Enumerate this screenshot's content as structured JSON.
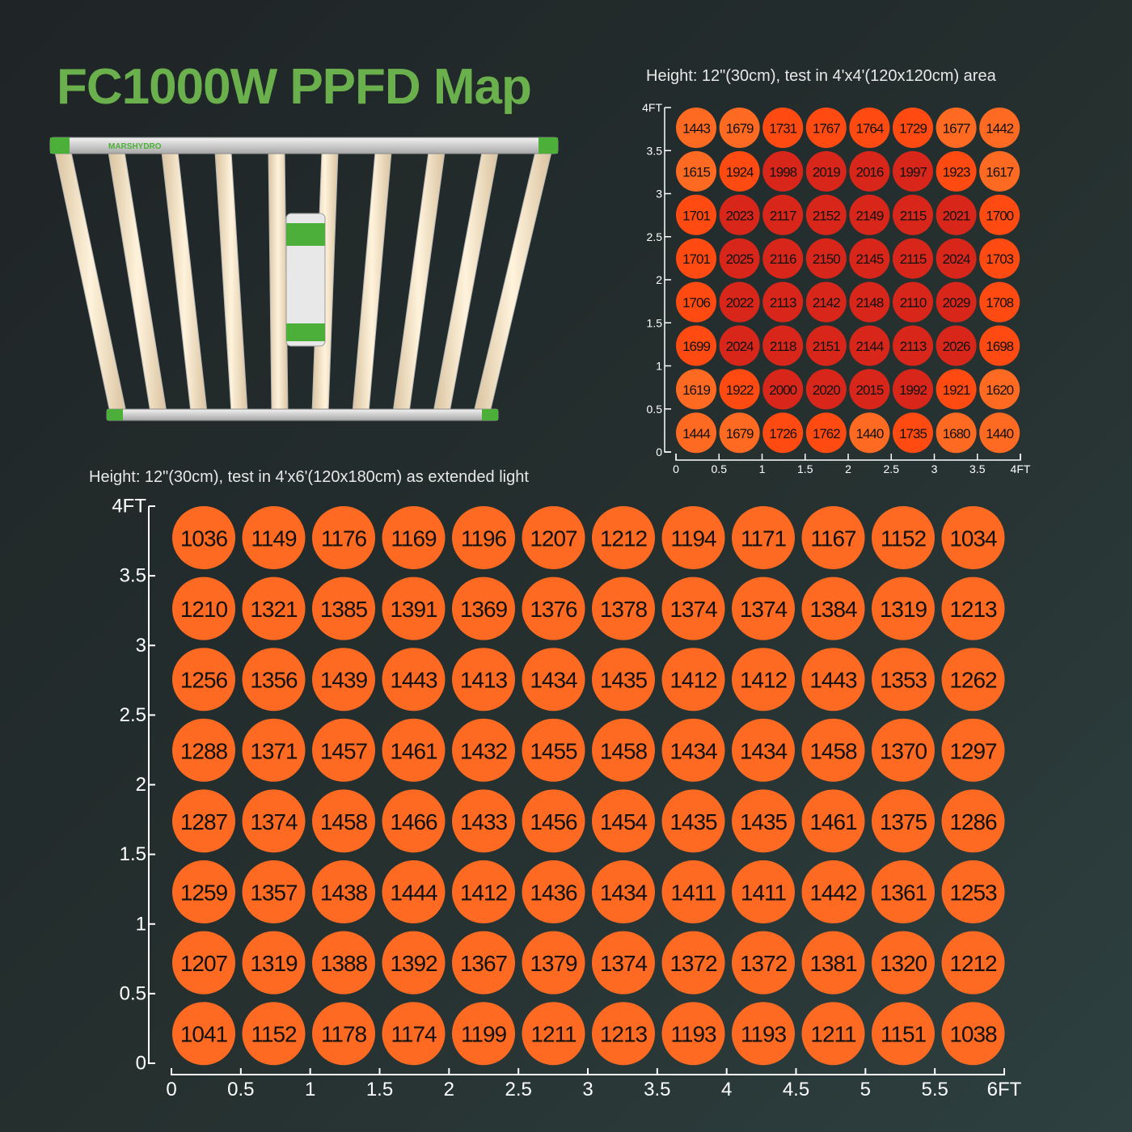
{
  "title": "FC1000W PPFD Map",
  "brand": "MARSHYDRO",
  "colors": {
    "title": "#6ab04c",
    "low": "#ff6a22",
    "mid": "#ff4a12",
    "high": "#d8271a",
    "axis": "#ffffff"
  },
  "chart_data": [
    {
      "type": "heatmap",
      "title": "Height: 12\"(30cm), test in 4'x4'(120x120cm) area",
      "x_ticks": [
        "0",
        "0.5",
        "1",
        "1.5",
        "2",
        "2.5",
        "3",
        "3.5",
        "4FT"
      ],
      "y_ticks": [
        "0",
        "0.5",
        "1",
        "1.5",
        "2",
        "2.5",
        "3",
        "3.5",
        "4FT"
      ],
      "xlim": [
        0,
        4
      ],
      "ylim": [
        0,
        4
      ],
      "rows": [
        [
          1443,
          1679,
          1731,
          1767,
          1764,
          1729,
          1677,
          1442
        ],
        [
          1615,
          1924,
          1998,
          2019,
          2016,
          1997,
          1923,
          1617
        ],
        [
          1701,
          2023,
          2117,
          2152,
          2149,
          2115,
          2021,
          1700
        ],
        [
          1701,
          2025,
          2116,
          2150,
          2145,
          2115,
          2024,
          1703
        ],
        [
          1706,
          2022,
          2113,
          2142,
          2148,
          2110,
          2029,
          1708
        ],
        [
          1699,
          2024,
          2118,
          2151,
          2144,
          2113,
          2026,
          1698
        ],
        [
          1619,
          1922,
          2000,
          2020,
          2015,
          1992,
          1921,
          1620
        ],
        [
          1444,
          1679,
          1726,
          1762,
          1440,
          1735,
          1680,
          1440
        ]
      ]
    },
    {
      "type": "heatmap",
      "title": "Height: 12\"(30cm), test in 4'x6'(120x180cm) as extended light",
      "x_ticks": [
        "0",
        "0.5",
        "1",
        "1.5",
        "2",
        "2.5",
        "3",
        "3.5",
        "4",
        "4.5",
        "5",
        "5.5",
        "6FT"
      ],
      "y_ticks": [
        "0",
        "0.5",
        "1",
        "1.5",
        "2",
        "2.5",
        "3",
        "3.5",
        "4FT"
      ],
      "xlim": [
        0,
        6
      ],
      "ylim": [
        0,
        4
      ],
      "rows": [
        [
          1036,
          1149,
          1176,
          1169,
          1196,
          1207,
          1212,
          1194,
          1171,
          1167,
          1152,
          1034
        ],
        [
          1210,
          1321,
          1385,
          1391,
          1369,
          1376,
          1378,
          1374,
          1374,
          1384,
          1319,
          1213
        ],
        [
          1256,
          1356,
          1439,
          1443,
          1413,
          1434,
          1435,
          1412,
          1412,
          1443,
          1353,
          1262
        ],
        [
          1288,
          1371,
          1457,
          1461,
          1432,
          1455,
          1458,
          1434,
          1434,
          1458,
          1370,
          1297
        ],
        [
          1287,
          1374,
          1458,
          1466,
          1433,
          1456,
          1454,
          1435,
          1435,
          1461,
          1375,
          1286
        ],
        [
          1259,
          1357,
          1438,
          1444,
          1412,
          1436,
          1434,
          1411,
          1411,
          1442,
          1361,
          1253
        ],
        [
          1207,
          1319,
          1388,
          1392,
          1367,
          1379,
          1374,
          1372,
          1372,
          1381,
          1320,
          1212
        ],
        [
          1041,
          1152,
          1178,
          1174,
          1199,
          1211,
          1213,
          1193,
          1193,
          1211,
          1151,
          1038
        ]
      ]
    }
  ]
}
